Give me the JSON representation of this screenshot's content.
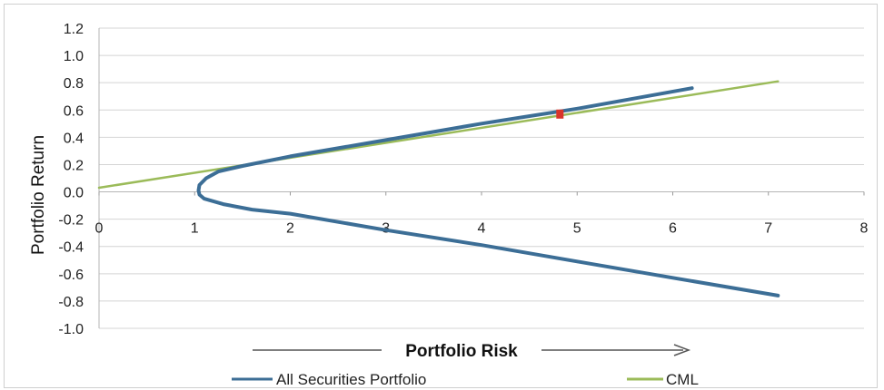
{
  "chart_data": {
    "type": "line",
    "xlabel": "Portfolio Risk",
    "ylabel": "Portfolio Return",
    "xlim": [
      0,
      8
    ],
    "ylim": [
      -1.0,
      1.2
    ],
    "xticks": [
      0,
      1,
      2,
      3,
      4,
      5,
      6,
      7,
      8
    ],
    "yticks": [
      1.2,
      1.0,
      0.8,
      0.6,
      0.4,
      0.2,
      0.0,
      -0.2,
      -0.4,
      -0.6,
      -0.8,
      -1.0
    ],
    "ytick_labels": [
      "1.2",
      "1.0",
      "0.8",
      "0.6",
      "0.4",
      "0.2",
      "0.0",
      "-0.2",
      "-0.4",
      "-0.6",
      "-0.8",
      "-1.0"
    ],
    "grid": "horizontal",
    "legend_position": "bottom",
    "series": [
      {
        "name": "All Securities Portfolio",
        "color": "#3c6e96",
        "x": [
          6.2,
          5.0,
          4.0,
          3.0,
          2.0,
          1.5,
          1.25,
          1.12,
          1.05,
          1.04,
          1.05,
          1.1,
          1.3,
          1.6,
          2.0,
          3.0,
          4.0,
          5.0,
          6.0,
          7.1
        ],
        "y": [
          0.76,
          0.61,
          0.5,
          0.38,
          0.26,
          0.19,
          0.15,
          0.1,
          0.05,
          0.01,
          -0.02,
          -0.05,
          -0.09,
          -0.13,
          -0.16,
          -0.28,
          -0.39,
          -0.51,
          -0.63,
          -0.76
        ]
      },
      {
        "name": "CML",
        "color": "#9bbb59",
        "x": [
          0.0,
          7.1
        ],
        "y": [
          0.03,
          0.81
        ]
      }
    ],
    "marker": {
      "x": 4.82,
      "y": 0.57,
      "color": "#d9342b"
    },
    "xlabel_arrow_color": "#555555"
  }
}
